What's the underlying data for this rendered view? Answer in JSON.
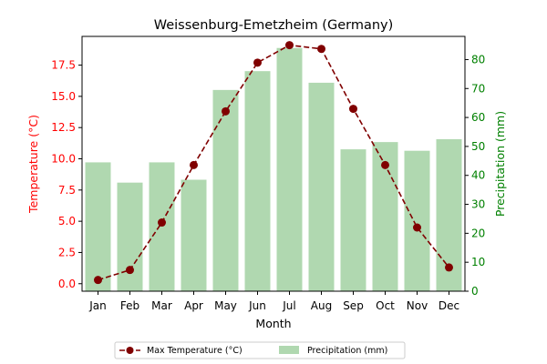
{
  "chart_data": {
    "type": "bar",
    "title": "Weissenburg-Emetzheim (Germany)",
    "xlabel": "Month",
    "ylabel_left": "Temperature (°C)",
    "ylabel_right": "Precipitation (mm)",
    "categories": [
      "Jan",
      "Feb",
      "Mar",
      "Apr",
      "May",
      "Jun",
      "Jul",
      "Aug",
      "Sep",
      "Oct",
      "Nov",
      "Dec"
    ],
    "series": [
      {
        "name": "Max Temperature (°C)",
        "type": "line",
        "axis": "left",
        "style": "dashed with circle markers",
        "values": [
          0.3,
          1.1,
          4.9,
          9.5,
          13.8,
          17.7,
          19.1,
          18.8,
          14.0,
          9.5,
          4.5,
          1.3
        ]
      },
      {
        "name": "Precipitation (mm)",
        "type": "bar",
        "axis": "right",
        "values": [
          44.5,
          37.5,
          44.5,
          38.5,
          69.5,
          76.0,
          84.0,
          72.0,
          49.0,
          51.5,
          48.5,
          52.5
        ]
      }
    ],
    "ylim_left": [
      -0.6,
      19.8
    ],
    "yticks_left": [
      "0.0",
      "2.5",
      "5.0",
      "7.5",
      "10.0",
      "12.5",
      "15.0",
      "17.5"
    ],
    "ylim_right": [
      0,
      88
    ],
    "yticks_right": [
      "0",
      "10",
      "20",
      "30",
      "40",
      "50",
      "60",
      "70",
      "80"
    ],
    "grid": false,
    "legend_position": "bottom-center",
    "colors": {
      "temperature": "#800000",
      "precipitation": "#b0d8b0",
      "left_axis": "#ff0000",
      "right_axis": "#008000"
    }
  }
}
